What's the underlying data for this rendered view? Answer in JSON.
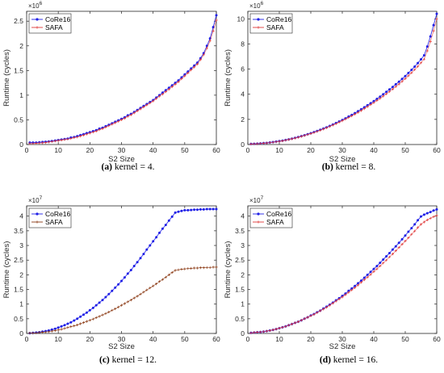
{
  "chart_data": [
    {
      "type": "line",
      "caption_label": "(a)",
      "caption_text": " kernel = 4.",
      "xlabel": "S2 Size",
      "ylabel": "Runtime (cycles)",
      "y_multiplier": "×10",
      "y_exponent": "6",
      "xlim": [
        0,
        60
      ],
      "ylim": [
        0,
        2.7
      ],
      "x_ticks": [
        0,
        10,
        20,
        30,
        40,
        50,
        60
      ],
      "y_ticks": [
        0,
        0.5,
        1,
        1.5,
        2,
        2.5
      ],
      "y_tick_labels": [
        "0",
        "0.5",
        "1",
        "1.5",
        "2",
        "2.5"
      ],
      "legend_position": "top-left",
      "x": [
        1,
        2,
        3,
        4,
        5,
        6,
        7,
        8,
        9,
        10,
        11,
        12,
        13,
        14,
        15,
        16,
        17,
        18,
        19,
        20,
        21,
        22,
        23,
        24,
        25,
        26,
        27,
        28,
        29,
        30,
        31,
        32,
        33,
        34,
        35,
        36,
        37,
        38,
        39,
        40,
        41,
        42,
        43,
        44,
        45,
        46,
        47,
        48,
        49,
        50,
        51,
        52,
        53,
        54,
        55,
        56,
        57,
        58,
        59,
        60
      ],
      "series": [
        {
          "name": "CoRe16",
          "color": "#1f1fe6",
          "marker": "dot",
          "values": [
            0.04,
            0.04,
            0.04,
            0.045,
            0.05,
            0.055,
            0.06,
            0.07,
            0.08,
            0.09,
            0.1,
            0.11,
            0.12,
            0.14,
            0.15,
            0.17,
            0.19,
            0.21,
            0.23,
            0.25,
            0.27,
            0.29,
            0.32,
            0.34,
            0.37,
            0.4,
            0.43,
            0.46,
            0.49,
            0.52,
            0.55,
            0.59,
            0.62,
            0.66,
            0.7,
            0.74,
            0.78,
            0.82,
            0.86,
            0.9,
            0.95,
            1.0,
            1.05,
            1.1,
            1.15,
            1.2,
            1.25,
            1.3,
            1.36,
            1.42,
            1.48,
            1.54,
            1.6,
            1.66,
            1.75,
            1.85,
            2.0,
            2.15,
            2.38,
            2.62
          ]
        },
        {
          "name": "SAFA",
          "color": "#e03a3a",
          "marker": "plus",
          "values": [
            0.02,
            0.02,
            0.025,
            0.03,
            0.035,
            0.04,
            0.05,
            0.06,
            0.07,
            0.08,
            0.09,
            0.1,
            0.11,
            0.12,
            0.14,
            0.15,
            0.17,
            0.19,
            0.21,
            0.23,
            0.25,
            0.27,
            0.3,
            0.32,
            0.35,
            0.38,
            0.41,
            0.44,
            0.47,
            0.5,
            0.53,
            0.57,
            0.6,
            0.64,
            0.68,
            0.72,
            0.76,
            0.8,
            0.84,
            0.88,
            0.93,
            0.98,
            1.02,
            1.07,
            1.12,
            1.17,
            1.22,
            1.27,
            1.33,
            1.39,
            1.45,
            1.51,
            1.57,
            1.63,
            1.72,
            1.82,
            1.95,
            2.1,
            2.3,
            2.52
          ]
        }
      ]
    },
    {
      "type": "line",
      "caption_label": "(b)",
      "caption_text": " kernel = 8.",
      "xlabel": "S2 Size",
      "ylabel": "Runtime (cycles)",
      "y_multiplier": "×10",
      "y_exponent": "6",
      "xlim": [
        0,
        60
      ],
      "ylim": [
        0,
        10.6
      ],
      "x_ticks": [
        0,
        10,
        20,
        30,
        40,
        50,
        60
      ],
      "y_ticks": [
        0,
        2,
        4,
        6,
        8,
        10
      ],
      "y_tick_labels": [
        "0",
        "2",
        "4",
        "6",
        "8",
        "10"
      ],
      "legend_position": "top-left",
      "x": [
        1,
        2,
        3,
        4,
        5,
        6,
        7,
        8,
        9,
        10,
        11,
        12,
        13,
        14,
        15,
        16,
        17,
        18,
        19,
        20,
        21,
        22,
        23,
        24,
        25,
        26,
        27,
        28,
        29,
        30,
        31,
        32,
        33,
        34,
        35,
        36,
        37,
        38,
        39,
        40,
        41,
        42,
        43,
        44,
        45,
        46,
        47,
        48,
        49,
        50,
        51,
        52,
        53,
        54,
        55,
        56,
        57,
        58,
        59,
        60
      ],
      "series": [
        {
          "name": "CoRe16",
          "color": "#1f1fe6",
          "marker": "dot",
          "values": [
            0.05,
            0.06,
            0.07,
            0.09,
            0.11,
            0.13,
            0.16,
            0.19,
            0.23,
            0.27,
            0.31,
            0.36,
            0.41,
            0.47,
            0.53,
            0.6,
            0.67,
            0.74,
            0.82,
            0.9,
            0.99,
            1.08,
            1.17,
            1.27,
            1.37,
            1.48,
            1.59,
            1.71,
            1.83,
            1.95,
            2.08,
            2.22,
            2.35,
            2.5,
            2.65,
            2.8,
            2.96,
            3.12,
            3.28,
            3.45,
            3.63,
            3.81,
            4.0,
            4.19,
            4.38,
            4.58,
            4.79,
            5.0,
            5.22,
            5.45,
            5.69,
            5.94,
            6.2,
            6.48,
            6.78,
            7.1,
            7.8,
            8.6,
            9.5,
            10.4
          ]
        },
        {
          "name": "SAFA",
          "color": "#e03a3a",
          "marker": "plus",
          "values": [
            0.04,
            0.05,
            0.06,
            0.08,
            0.1,
            0.12,
            0.15,
            0.18,
            0.21,
            0.25,
            0.29,
            0.34,
            0.39,
            0.45,
            0.51,
            0.57,
            0.64,
            0.71,
            0.79,
            0.87,
            0.95,
            1.04,
            1.13,
            1.23,
            1.33,
            1.43,
            1.54,
            1.65,
            1.77,
            1.89,
            2.01,
            2.14,
            2.27,
            2.41,
            2.55,
            2.7,
            2.85,
            3.01,
            3.17,
            3.33,
            3.5,
            3.67,
            3.85,
            4.03,
            4.22,
            4.41,
            4.61,
            4.81,
            5.02,
            5.24,
            5.47,
            5.71,
            5.96,
            6.22,
            6.5,
            6.8,
            7.45,
            8.2,
            9.05,
            10.0
          ]
        }
      ]
    },
    {
      "type": "line",
      "caption_label": "(c)",
      "caption_text": " kernel = 12.",
      "xlabel": "S2 Size",
      "ylabel": "Runtime (cycles)",
      "y_multiplier": "×10",
      "y_exponent": "7",
      "xlim": [
        0,
        60
      ],
      "ylim": [
        0,
        4.35
      ],
      "x_ticks": [
        0,
        10,
        20,
        30,
        40,
        50,
        60
      ],
      "y_ticks": [
        0,
        0.5,
        1,
        1.5,
        2,
        2.5,
        3,
        3.5,
        4
      ],
      "y_tick_labels": [
        "0",
        "0.5",
        "1",
        "1.5",
        "2",
        "2.5",
        "3",
        "3.5",
        "4"
      ],
      "legend_position": "top-left",
      "x": [
        1,
        2,
        3,
        4,
        5,
        6,
        7,
        8,
        9,
        10,
        11,
        12,
        13,
        14,
        15,
        16,
        17,
        18,
        19,
        20,
        21,
        22,
        23,
        24,
        25,
        26,
        27,
        28,
        29,
        30,
        31,
        32,
        33,
        34,
        35,
        36,
        37,
        38,
        39,
        40,
        41,
        42,
        43,
        44,
        45,
        46,
        47,
        48,
        49,
        50,
        51,
        52,
        53,
        54,
        55,
        56,
        57,
        58,
        59,
        60
      ],
      "series": [
        {
          "name": "CoRe16",
          "color": "#1f1fe6",
          "marker": "dot",
          "values": [
            0.01,
            0.02,
            0.03,
            0.04,
            0.06,
            0.08,
            0.1,
            0.13,
            0.16,
            0.2,
            0.24,
            0.28,
            0.33,
            0.38,
            0.44,
            0.5,
            0.57,
            0.64,
            0.71,
            0.79,
            0.87,
            0.96,
            1.05,
            1.14,
            1.24,
            1.34,
            1.45,
            1.56,
            1.67,
            1.79,
            1.91,
            2.04,
            2.16,
            2.3,
            2.43,
            2.57,
            2.71,
            2.86,
            3.0,
            3.14,
            3.28,
            3.43,
            3.57,
            3.7,
            3.85,
            3.98,
            4.12,
            4.15,
            4.18,
            4.2,
            4.2,
            4.21,
            4.22,
            4.22,
            4.23,
            4.23,
            4.24,
            4.24,
            4.24,
            4.24
          ]
        },
        {
          "name": "SAFA",
          "color": "#8b3a14",
          "marker": "plus",
          "values": [
            0.01,
            0.01,
            0.02,
            0.03,
            0.04,
            0.05,
            0.06,
            0.08,
            0.1,
            0.12,
            0.14,
            0.17,
            0.2,
            0.23,
            0.26,
            0.29,
            0.33,
            0.37,
            0.41,
            0.45,
            0.49,
            0.54,
            0.58,
            0.63,
            0.68,
            0.73,
            0.79,
            0.84,
            0.9,
            0.96,
            1.02,
            1.08,
            1.14,
            1.21,
            1.27,
            1.34,
            1.41,
            1.48,
            1.55,
            1.62,
            1.69,
            1.77,
            1.84,
            1.92,
            2.0,
            2.08,
            2.15,
            2.17,
            2.19,
            2.2,
            2.21,
            2.22,
            2.23,
            2.23,
            2.24,
            2.24,
            2.25,
            2.25,
            2.26,
            2.26
          ]
        }
      ]
    },
    {
      "type": "line",
      "caption_label": "(d)",
      "caption_text": " kernel = 16.",
      "xlabel": "S2 Size",
      "ylabel": "Runtime (cycles)",
      "y_multiplier": "×10",
      "y_exponent": "7",
      "xlim": [
        0,
        60
      ],
      "ylim": [
        0,
        4.35
      ],
      "x_ticks": [
        0,
        10,
        20,
        30,
        40,
        50,
        60
      ],
      "y_ticks": [
        0,
        0.5,
        1,
        1.5,
        2,
        2.5,
        3,
        3.5,
        4
      ],
      "y_tick_labels": [
        "0",
        "0.5",
        "1",
        "1.5",
        "2",
        "2.5",
        "3",
        "3.5",
        "4"
      ],
      "legend_position": "top-left",
      "x": [
        1,
        2,
        3,
        4,
        5,
        6,
        7,
        8,
        9,
        10,
        11,
        12,
        13,
        14,
        15,
        16,
        17,
        18,
        19,
        20,
        21,
        22,
        23,
        24,
        25,
        26,
        27,
        28,
        29,
        30,
        31,
        32,
        33,
        34,
        35,
        36,
        37,
        38,
        39,
        40,
        41,
        42,
        43,
        44,
        45,
        46,
        47,
        48,
        49,
        50,
        51,
        52,
        53,
        54,
        55,
        56,
        57,
        58,
        59,
        60
      ],
      "series": [
        {
          "name": "CoRe16",
          "color": "#1f1fe6",
          "marker": "dot",
          "values": [
            0.02,
            0.03,
            0.04,
            0.05,
            0.06,
            0.08,
            0.1,
            0.12,
            0.15,
            0.18,
            0.21,
            0.24,
            0.28,
            0.32,
            0.36,
            0.4,
            0.45,
            0.5,
            0.55,
            0.61,
            0.66,
            0.72,
            0.78,
            0.85,
            0.91,
            0.98,
            1.05,
            1.13,
            1.2,
            1.28,
            1.36,
            1.45,
            1.53,
            1.62,
            1.71,
            1.8,
            1.9,
            2.0,
            2.1,
            2.2,
            2.3,
            2.41,
            2.52,
            2.63,
            2.74,
            2.86,
            2.97,
            3.09,
            3.21,
            3.34,
            3.47,
            3.59,
            3.72,
            3.86,
            3.99,
            4.05,
            4.1,
            4.14,
            4.19,
            4.23
          ]
        },
        {
          "name": "SAFA",
          "color": "#e03a3a",
          "marker": "plus",
          "values": [
            0.02,
            0.03,
            0.04,
            0.05,
            0.06,
            0.08,
            0.1,
            0.12,
            0.15,
            0.18,
            0.21,
            0.24,
            0.28,
            0.32,
            0.36,
            0.4,
            0.45,
            0.5,
            0.55,
            0.6,
            0.65,
            0.71,
            0.77,
            0.83,
            0.89,
            0.96,
            1.03,
            1.1,
            1.17,
            1.24,
            1.32,
            1.4,
            1.48,
            1.56,
            1.65,
            1.74,
            1.83,
            1.92,
            2.01,
            2.11,
            2.2,
            2.3,
            2.4,
            2.5,
            2.61,
            2.71,
            2.82,
            2.93,
            3.04,
            3.15,
            3.26,
            3.38,
            3.49,
            3.61,
            3.72,
            3.8,
            3.87,
            3.93,
            3.98,
            4.02
          ]
        }
      ]
    }
  ]
}
